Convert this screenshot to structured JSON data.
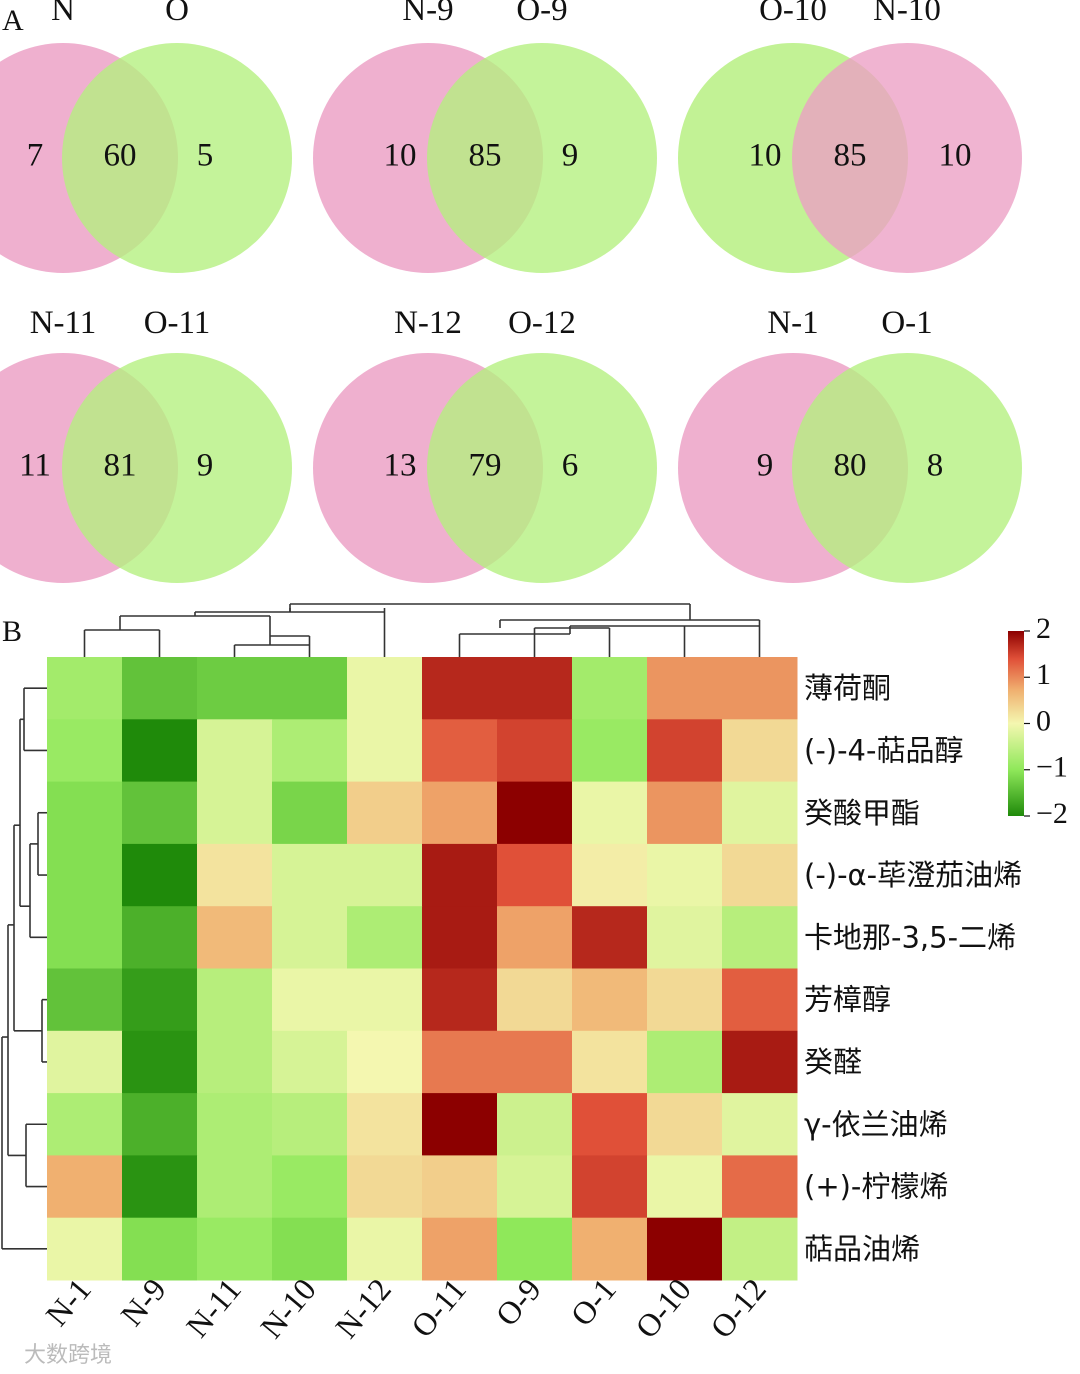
{
  "panels": {
    "a": "A",
    "b": "B"
  },
  "chart_data": [
    {
      "type": "venn",
      "diagrams": [
        {
          "sets": [
            "N",
            "O"
          ],
          "left_color": "#ec9fc4",
          "right_color": "#b4ef7e",
          "left_only": 7,
          "overlap": 60,
          "right_only": 5
        },
        {
          "sets": [
            "N-9",
            "O-9"
          ],
          "left_color": "#ec9fc4",
          "right_color": "#b4ef7e",
          "left_only": 10,
          "overlap": 85,
          "right_only": 9
        },
        {
          "sets": [
            "O-10",
            "N-10"
          ],
          "left_color": "#b4ef7e",
          "right_color": "#ec9fc4",
          "left_only": 10,
          "overlap": 85,
          "right_only": 10
        },
        {
          "sets": [
            "N-11",
            "O-11"
          ],
          "left_color": "#ec9fc4",
          "right_color": "#b4ef7e",
          "left_only": 11,
          "overlap": 81,
          "right_only": 9
        },
        {
          "sets": [
            "N-12",
            "O-12"
          ],
          "left_color": "#ec9fc4",
          "right_color": "#b4ef7e",
          "left_only": 13,
          "overlap": 79,
          "right_only": 6
        },
        {
          "sets": [
            "N-1",
            "O-1"
          ],
          "left_color": "#ec9fc4",
          "right_color": "#b4ef7e",
          "left_only": 9,
          "overlap": 80,
          "right_only": 8
        }
      ]
    },
    {
      "type": "heatmap",
      "columns": [
        "N-1",
        "N-9",
        "N-11",
        "N-10",
        "N-12",
        "O-11",
        "O-9",
        "O-1",
        "O-10",
        "O-12"
      ],
      "rows": [
        "薄荷酮",
        "(-)-4-萜品醇",
        "癸酸甲酯",
        "(-)-α-荜澄茄油烯",
        "卡地那-3,5-二烯",
        "芳樟醇",
        "癸醛",
        "γ-依兰油烯",
        "(+)-柠檬烯",
        "萜品油烯"
      ],
      "values": [
        [
          -0.8,
          -1.4,
          -1.3,
          -1.3,
          -0.1,
          1.7,
          1.7,
          -0.8,
          0.9,
          0.9
        ],
        [
          -0.9,
          -2.0,
          -0.3,
          -0.7,
          -0.1,
          1.3,
          1.5,
          -0.9,
          1.5,
          0.3
        ],
        [
          -1.1,
          -1.4,
          -0.3,
          -1.2,
          0.4,
          0.8,
          2.0,
          -0.1,
          0.9,
          -0.2
        ],
        [
          -1.1,
          -2.0,
          0.2,
          -0.3,
          -0.3,
          1.8,
          1.4,
          0.1,
          -0.1,
          0.3
        ],
        [
          -1.1,
          -1.6,
          0.6,
          -0.3,
          -0.7,
          1.8,
          0.8,
          1.7,
          -0.2,
          -0.6
        ],
        [
          -1.4,
          -1.8,
          -0.6,
          -0.1,
          -0.1,
          1.7,
          0.3,
          0.6,
          0.3,
          1.3
        ],
        [
          -0.2,
          -1.9,
          -0.6,
          -0.3,
          0.0,
          1.1,
          1.1,
          0.2,
          -0.7,
          1.8
        ],
        [
          -0.7,
          -1.6,
          -0.7,
          -0.6,
          0.2,
          2.0,
          -0.4,
          1.4,
          0.3,
          -0.2
        ],
        [
          0.7,
          -1.9,
          -0.7,
          -0.9,
          0.3,
          0.4,
          -0.3,
          1.5,
          -0.1,
          1.2
        ],
        [
          -0.1,
          -1.1,
          -0.9,
          -1.1,
          -0.1,
          0.8,
          -1.0,
          0.7,
          2.0,
          -0.5
        ]
      ],
      "colorbar": {
        "ticks": [
          "2",
          "1",
          "0",
          "−1",
          "−2"
        ],
        "range": [
          -2,
          2
        ],
        "colors": [
          "#1f8a0a",
          "#8fe85a",
          "#f4f7b0",
          "#f0b070",
          "#e05038",
          "#8c0000"
        ]
      }
    }
  ],
  "watermark": "大数跨境"
}
